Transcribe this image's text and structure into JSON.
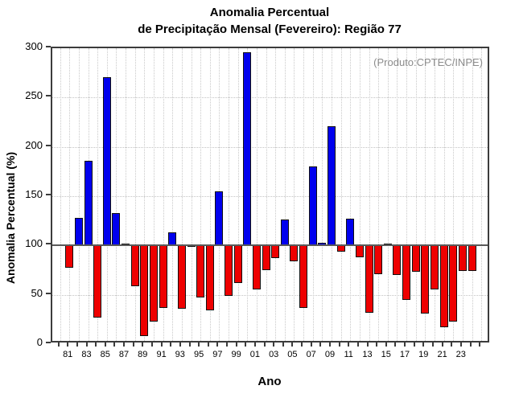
{
  "title": {
    "line1": "Anomalia Percentual",
    "line2": "de Precipitação Mensal (Fevereiro): Região 77"
  },
  "annotation": "(Produto:CPTEC/INPE)",
  "chart_data": {
    "type": "bar",
    "title": "Anomalia Percentual de Precipitação Mensal (Fevereiro): Região 77",
    "xlabel": "Ano",
    "ylabel": "Anomalia Percentual (%)",
    "ylim": [
      0,
      300
    ],
    "yticks": [
      0,
      50,
      100,
      150,
      200,
      250,
      300
    ],
    "baseline": 100,
    "grid": "dotted",
    "legend_position": "none",
    "xlim_years": [
      1980,
      2025
    ],
    "xtick_labels_shown": [
      "81",
      "83",
      "85",
      "87",
      "89",
      "91",
      "93",
      "95",
      "97",
      "99",
      "01",
      "03",
      "05",
      "07",
      "09",
      "11",
      "13",
      "15",
      "17",
      "19",
      "21",
      "23"
    ],
    "categories": [
      "81",
      "82",
      "83",
      "84",
      "85",
      "86",
      "87",
      "88",
      "89",
      "90",
      "91",
      "92",
      "93",
      "94",
      "95",
      "96",
      "97",
      "98",
      "99",
      "00",
      "01",
      "02",
      "03",
      "04",
      "05",
      "06",
      "07",
      "08",
      "09",
      "10",
      "11",
      "12",
      "13",
      "14",
      "15",
      "16",
      "17",
      "18",
      "19",
      "20",
      "21",
      "22",
      "23",
      "24"
    ],
    "values": [
      77,
      128,
      186,
      27,
      271,
      133,
      102,
      59,
      8,
      23,
      37,
      113,
      36,
      99,
      47,
      34,
      155,
      49,
      62,
      296,
      55,
      75,
      87,
      126,
      84,
      37,
      180,
      103,
      221,
      94,
      127,
      88,
      32,
      71,
      102,
      70,
      45,
      73,
      31,
      55,
      17,
      23,
      74,
      74
    ],
    "colors": {
      "above_baseline": "#0000ee",
      "below_baseline": "#ee0000",
      "bar_outline": "#101010",
      "annotation_gray": "#8c8c8c"
    }
  }
}
